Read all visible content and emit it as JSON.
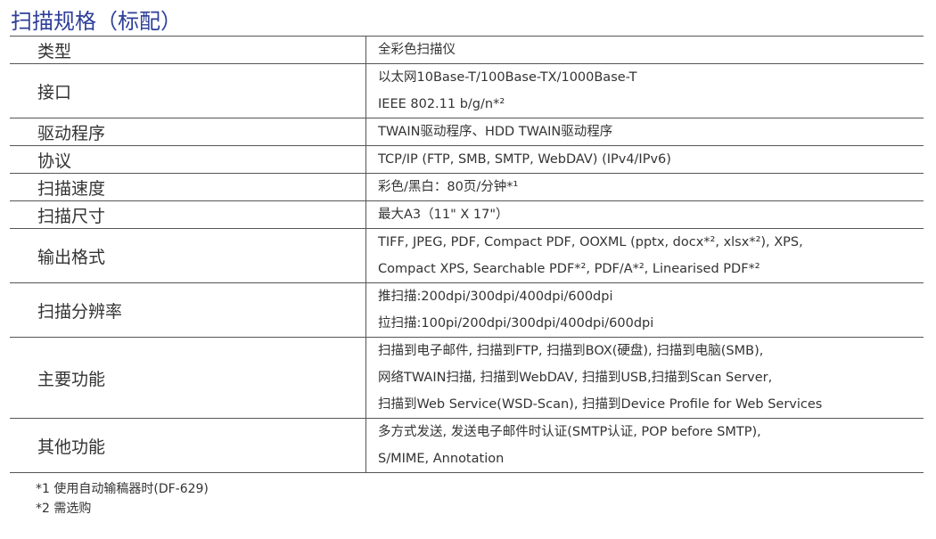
{
  "title": "扫描规格（标配）",
  "rows": [
    {
      "label": "类型",
      "lines": [
        "全彩色扫描仪"
      ]
    },
    {
      "label": "接口",
      "lines": [
        "以太网10Base-T/100Base-TX/1000Base-T",
        "IEEE 802.11 b/g/n*²"
      ]
    },
    {
      "label": "驱动程序",
      "lines": [
        "TWAIN驱动程序、HDD TWAIN驱动程序"
      ]
    },
    {
      "label": "协议",
      "lines": [
        "TCP/IP (FTP, SMB, SMTP, WebDAV) (IPv4/IPv6)"
      ]
    },
    {
      "label": "扫描速度",
      "lines": [
        "彩色/黑白：80页/分钟*¹"
      ]
    },
    {
      "label": "扫描尺寸",
      "lines": [
        "最大A3（11\" X 17\"）"
      ]
    },
    {
      "label": "输出格式",
      "lines": [
        "TIFF, JPEG, PDF, Compact PDF, OOXML (pptx, docx*², xlsx*²), XPS,",
        "Compact XPS, Searchable PDF*², PDF/A*², Linearised PDF*²"
      ]
    },
    {
      "label": "扫描分辨率",
      "lines": [
        "推扫描:200dpi/300dpi/400dpi/600dpi",
        "拉扫描:100pi/200dpi/300dpi/400dpi/600dpi"
      ]
    },
    {
      "label": "主要功能",
      "lines": [
        "扫描到电子邮件, 扫描到FTP, 扫描到BOX(硬盘), 扫描到电脑(SMB),",
        "网络TWAIN扫描, 扫描到WebDAV, 扫描到USB,扫描到Scan Server,",
        "扫描到Web Service(WSD-Scan), 扫描到Device Profile for Web Services"
      ]
    },
    {
      "label": "其他功能",
      "lines": [
        "多方式发送, 发送电子邮件时认证(SMTP认证, POP before SMTP),",
        "S/MIME, Annotation"
      ]
    }
  ],
  "footnotes": [
    "*1 使用自动输稿器时(DF-629)",
    "*2 需选购"
  ],
  "colors": {
    "title": "#2e3f99",
    "text": "#333333",
    "rule": "#555555"
  }
}
